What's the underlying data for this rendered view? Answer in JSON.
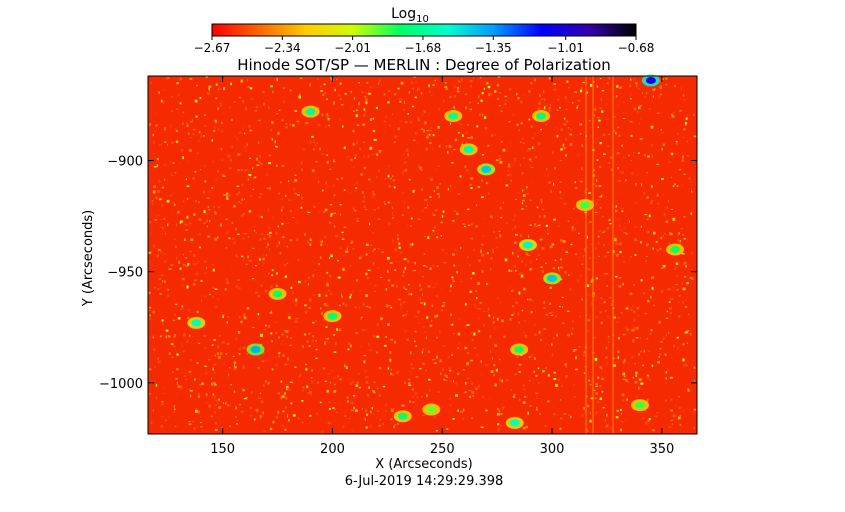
{
  "chart_data": {
    "type": "heatmap",
    "title": "Hinode SOT/SP — MERLIN : Degree of Polarization",
    "xlabel": "X (Arcseconds)",
    "ylabel": "Y (Arcseconds)",
    "timestamp": "6-Jul-2019 14:29:29.398",
    "xlim": [
      116,
      366
    ],
    "ylim": [
      -1023,
      -862
    ],
    "x_ticks": [
      150,
      200,
      250,
      300,
      350
    ],
    "y_ticks": [
      -900,
      -950,
      -1000
    ],
    "x_tick_labels": [
      "150",
      "200",
      "250",
      "300",
      "350"
    ],
    "y_tick_labels": [
      "−900",
      "−950",
      "−1000"
    ],
    "colorbar": {
      "label_main": "Log",
      "label_sub": "10",
      "range": [
        -2.67,
        -0.68
      ],
      "tick_values": [
        -2.67,
        -2.34,
        -2.01,
        -1.68,
        -1.35,
        -1.01,
        -0.68
      ],
      "tick_labels": [
        "−2.67",
        "−2.34",
        "−2.01",
        "−1.68",
        "−1.35",
        "−1.01",
        "−0.68"
      ],
      "colormap": [
        "#ff0000",
        "#ff6600",
        "#ffcc00",
        "#ccff00",
        "#00ff66",
        "#00ffcc",
        "#0099ff",
        "#0000ff",
        "#3300aa",
        "#000000"
      ]
    },
    "background_level": -2.55,
    "regions": [
      {
        "x": 289,
        "y": -938,
        "level": -1.55
      },
      {
        "x": 270,
        "y": -904,
        "level": -1.45
      },
      {
        "x": 300,
        "y": -953,
        "level": -1.45
      },
      {
        "x": 165,
        "y": -985,
        "level": -1.4
      },
      {
        "x": 138,
        "y": -973,
        "level": -1.6
      },
      {
        "x": 190,
        "y": -878,
        "level": -1.7
      },
      {
        "x": 255,
        "y": -880,
        "level": -1.7
      },
      {
        "x": 262,
        "y": -895,
        "level": -1.65
      },
      {
        "x": 175,
        "y": -960,
        "level": -1.8
      },
      {
        "x": 200,
        "y": -970,
        "level": -1.75
      },
      {
        "x": 232,
        "y": -1015,
        "level": -1.75
      },
      {
        "x": 283,
        "y": -1018,
        "level": -1.6
      },
      {
        "x": 285,
        "y": -985,
        "level": -1.8
      },
      {
        "x": 315,
        "y": -920,
        "level": -1.85
      },
      {
        "x": 340,
        "y": -1010,
        "level": -1.85
      },
      {
        "x": 356,
        "y": -940,
        "level": -1.8
      },
      {
        "x": 245,
        "y": -1012,
        "level": -1.9
      },
      {
        "x": 295,
        "y": -880,
        "level": -1.75
      },
      {
        "x": 345,
        "y": -864,
        "level": -1.05
      }
    ]
  }
}
